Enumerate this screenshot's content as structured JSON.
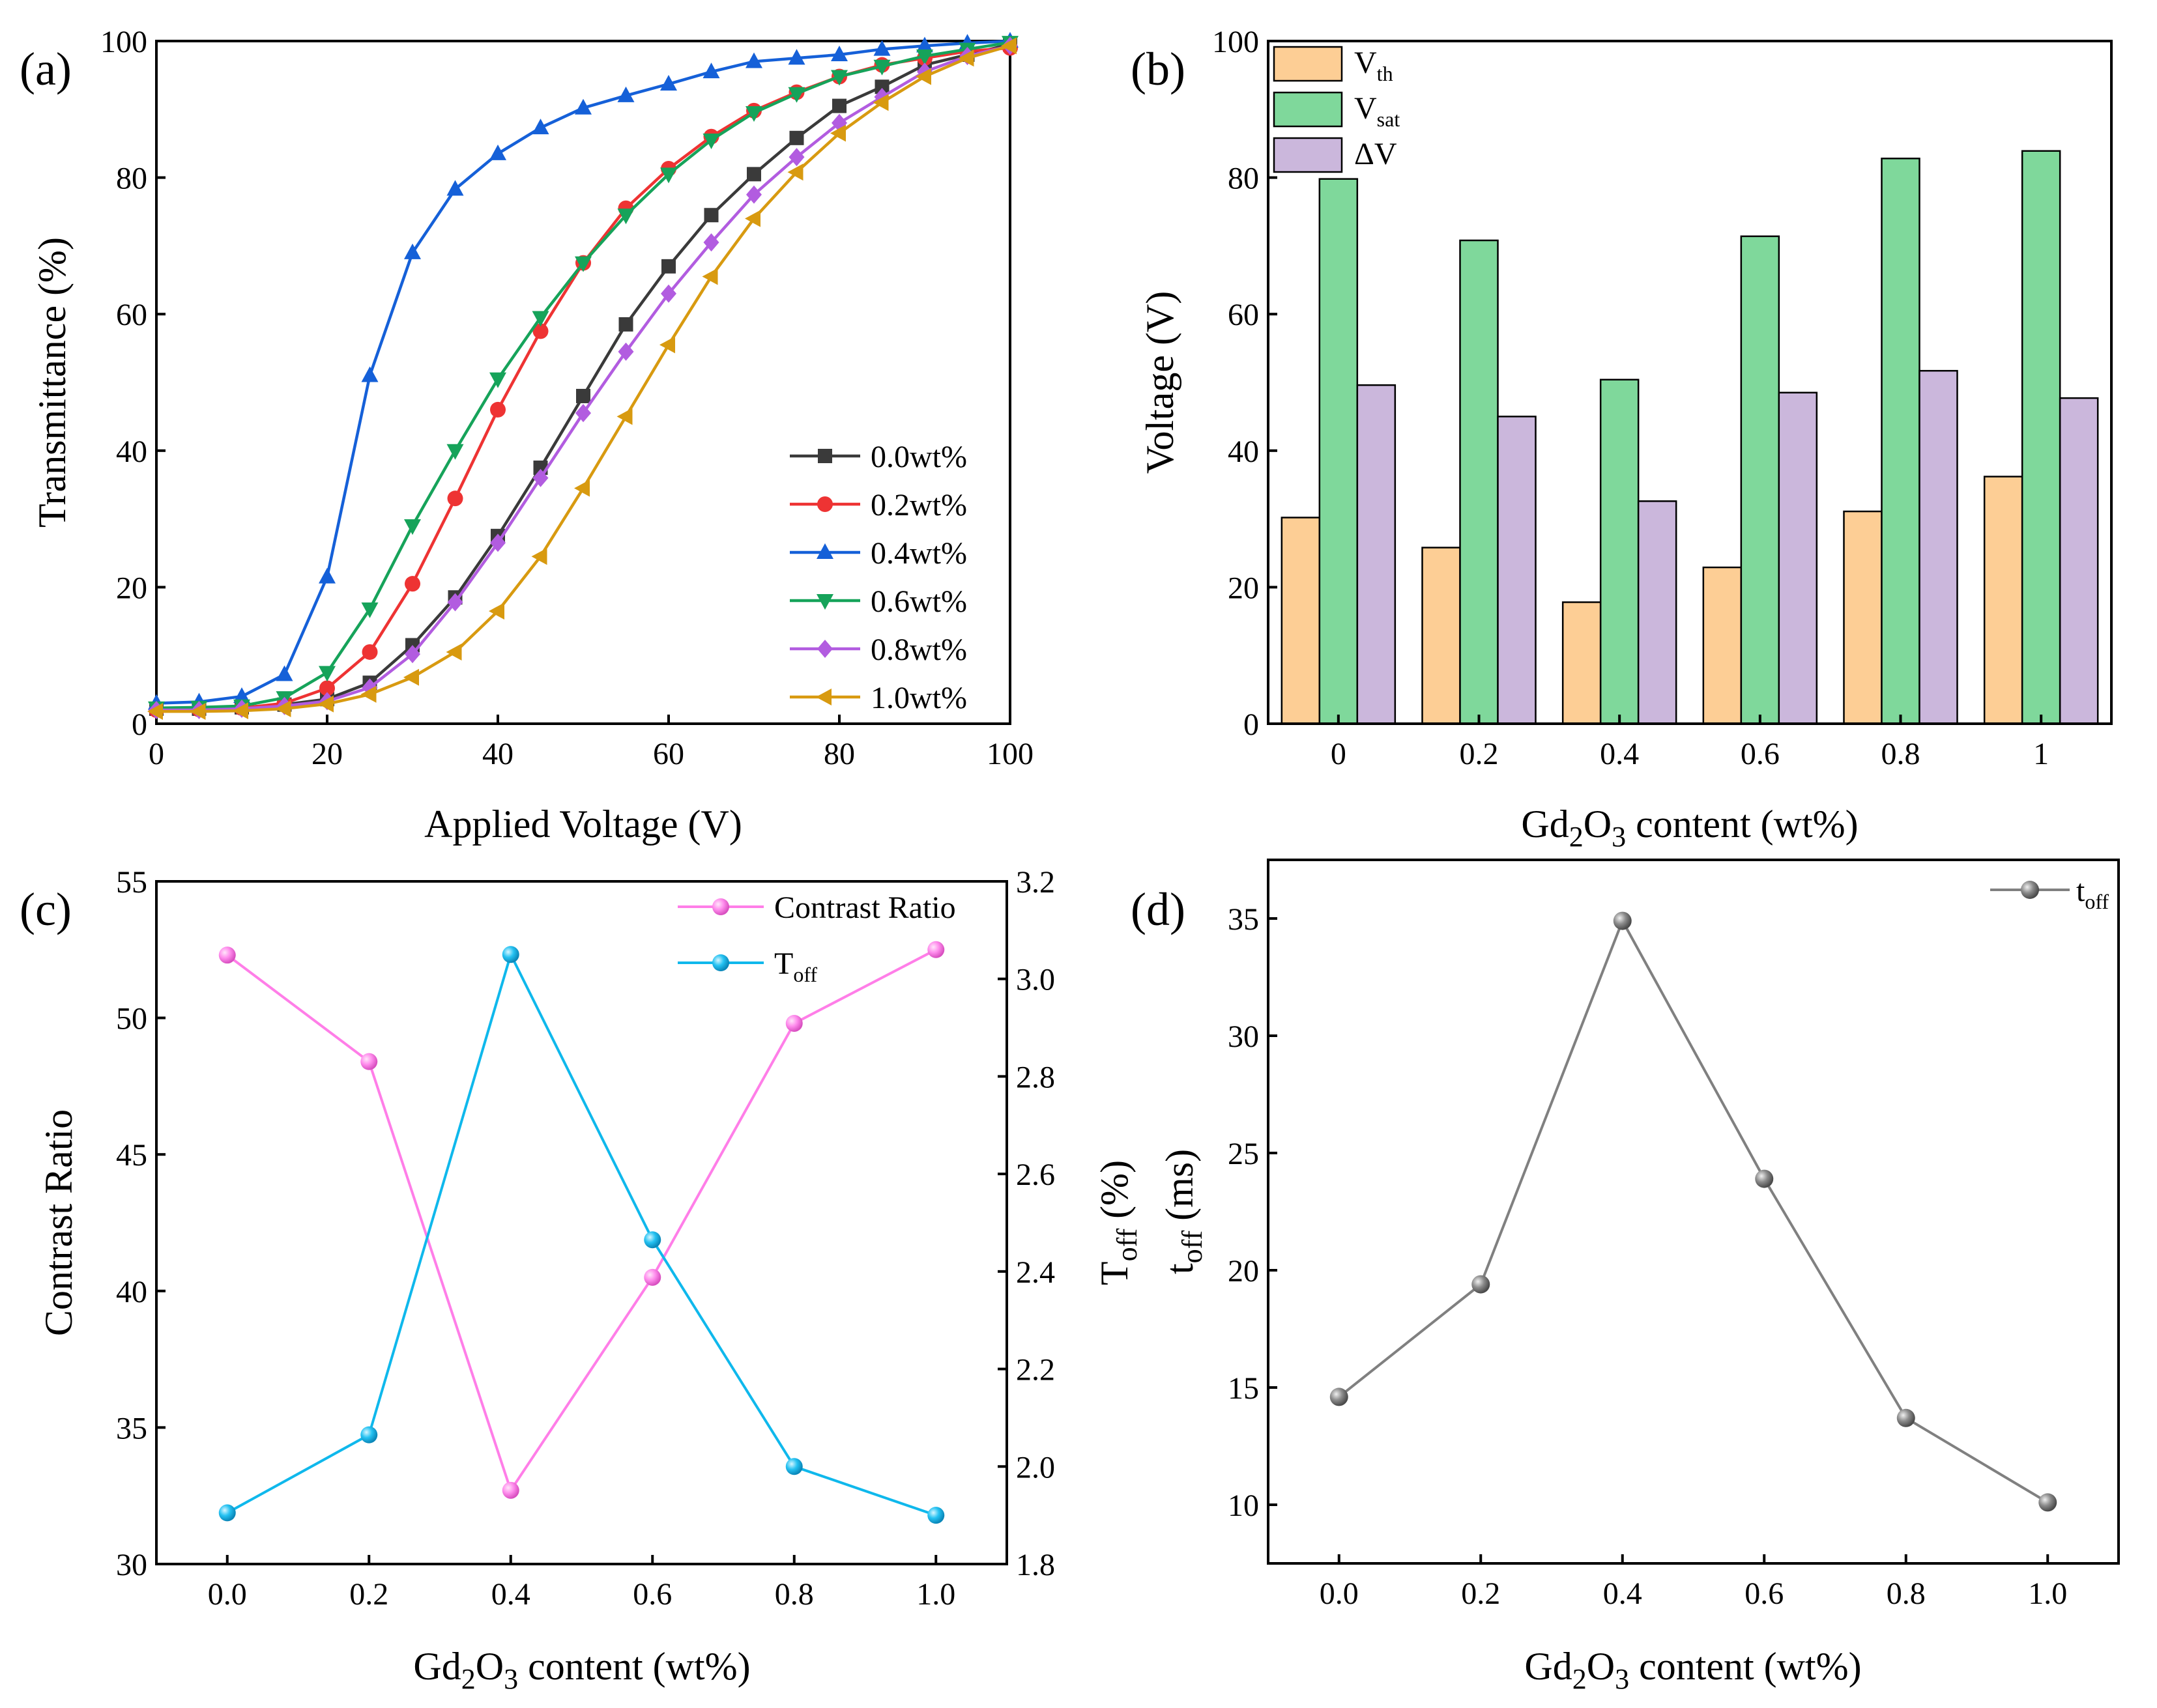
{
  "chart_data": [
    {
      "id": "a",
      "type": "line",
      "panel_label": "(a)",
      "xlabel": "Applied Voltage (V)",
      "ylabel": "Transmittance (%)",
      "xlim": [
        0,
        100
      ],
      "ylim": [
        0,
        100
      ],
      "xticks": [
        "0",
        "20",
        "40",
        "60",
        "80",
        "100"
      ],
      "yticks": [
        "0",
        "20",
        "40",
        "60",
        "80",
        "100"
      ],
      "legend_position": "bottom-right",
      "x": [
        0,
        5,
        10,
        15,
        20,
        25,
        30,
        35,
        40,
        45,
        50,
        55,
        60,
        65,
        70,
        75,
        80,
        85,
        90,
        95,
        100
      ],
      "series": [
        {
          "name": "0.0wt%",
          "color": "#3a3a3a",
          "marker": "square",
          "values": [
            2.2,
            2.2,
            2.4,
            2.8,
            3.6,
            6.0,
            11.5,
            18.5,
            27.5,
            37.5,
            48.0,
            58.5,
            67.0,
            74.5,
            80.5,
            85.8,
            90.5,
            93.3,
            96.5,
            98.0,
            99.5
          ]
        },
        {
          "name": "0.2wt%",
          "color": "#ee3333",
          "marker": "circle",
          "values": [
            2.0,
            2.1,
            2.3,
            3.0,
            5.2,
            10.5,
            20.5,
            33.0,
            46.0,
            57.5,
            67.5,
            75.5,
            81.3,
            86.0,
            89.8,
            92.5,
            94.8,
            96.5,
            97.5,
            98.5,
            99.0
          ]
        },
        {
          "name": "0.4wt%",
          "color": "#1560d8",
          "marker": "triangle-up",
          "values": [
            3.0,
            3.2,
            4.0,
            7.2,
            21.5,
            51.0,
            69.0,
            78.3,
            83.5,
            87.3,
            90.2,
            92.0,
            93.7,
            95.5,
            97.0,
            97.5,
            98.0,
            98.8,
            99.3,
            99.7,
            100.0
          ]
        },
        {
          "name": "0.6wt%",
          "color": "#16a35a",
          "marker": "triangle-down",
          "values": [
            2.3,
            2.4,
            2.6,
            3.8,
            7.5,
            16.8,
            29.0,
            40.0,
            50.5,
            59.5,
            67.5,
            74.5,
            80.5,
            85.5,
            89.5,
            92.3,
            94.8,
            96.3,
            97.8,
            98.8,
            99.8
          ]
        },
        {
          "name": "0.8wt%",
          "color": "#b25ce0",
          "marker": "diamond",
          "values": [
            2.0,
            2.0,
            2.2,
            2.6,
            3.3,
            5.3,
            10.2,
            17.8,
            26.5,
            36.0,
            45.5,
            54.5,
            63.0,
            70.5,
            77.5,
            83.0,
            88.0,
            91.8,
            95.5,
            97.8,
            99.3
          ]
        },
        {
          "name": "1.0wt%",
          "color": "#d89a10",
          "marker": "triangle-left",
          "values": [
            1.8,
            1.8,
            1.9,
            2.2,
            2.9,
            4.3,
            6.8,
            10.5,
            16.5,
            24.5,
            34.5,
            45.0,
            55.5,
            65.5,
            74.0,
            80.8,
            86.5,
            91.0,
            94.8,
            97.5,
            99.3
          ]
        }
      ]
    },
    {
      "id": "b",
      "type": "bar",
      "panel_label": "(b)",
      "xlabel_main": "Gd",
      "xlabel_sub": "2",
      "xlabel_mid": "O",
      "xlabel_sub2": "3",
      "xlabel_rest": " content (wt%)",
      "ylabel": "Voltage (V)",
      "ylim": [
        0,
        100
      ],
      "yticks": [
        "0",
        "20",
        "40",
        "60",
        "80",
        "100"
      ],
      "categories": [
        "0",
        "0.2",
        "0.4",
        "0.6",
        "0.8",
        "1"
      ],
      "legend_position": "top-left",
      "series": [
        {
          "name_main": "V",
          "name_sub": "th",
          "color": "#fdce95",
          "values": [
            30.2,
            25.8,
            17.8,
            22.9,
            31.1,
            36.2
          ]
        },
        {
          "name_main": "V",
          "name_sub": "sat",
          "color": "#7fd89b",
          "values": [
            79.8,
            70.8,
            50.4,
            71.4,
            82.8,
            83.9
          ]
        },
        {
          "name_main": "ΔV",
          "name_sub": "",
          "color": "#cbb7dc",
          "values": [
            49.6,
            45.0,
            32.6,
            48.5,
            51.7,
            47.7
          ]
        }
      ]
    },
    {
      "id": "c",
      "type": "line",
      "panel_label": "(c)",
      "xlabel_main": "Gd",
      "xlabel_sub": "2",
      "xlabel_mid": "O",
      "xlabel_sub2": "3",
      "xlabel_rest": " content (wt%)",
      "ylabel_left": "Contrast Ratio",
      "ylabel_right_main": "T",
      "ylabel_right_sub": "off",
      "ylabel_right_rest": " (%)",
      "xlim": [
        -0.1,
        1.1
      ],
      "ylim_left": [
        30,
        55
      ],
      "ylim_right": [
        1.8,
        3.2
      ],
      "xticks": [
        "0.0",
        "0.2",
        "0.4",
        "0.6",
        "0.8",
        "1.0"
      ],
      "yticks_left": [
        "30",
        "35",
        "40",
        "45",
        "50",
        "55"
      ],
      "yticks_right": [
        "1.8",
        "2.0",
        "2.2",
        "2.4",
        "2.6",
        "2.8",
        "3.0",
        "3.2"
      ],
      "x": [
        0.0,
        0.2,
        0.4,
        0.6,
        0.8,
        1.0
      ],
      "legend_position": "top-right",
      "series": [
        {
          "name_main": "Contrast Ratio",
          "name_sub": "",
          "axis": "left",
          "color": "#ff7ee8",
          "values": [
            52.3,
            48.4,
            32.7,
            40.5,
            49.8,
            52.5
          ]
        },
        {
          "name_main": "T",
          "name_sub": "off",
          "axis": "right",
          "color": "#0fb8ec",
          "values": [
            1.905,
            2.065,
            3.05,
            2.465,
            2.0,
            1.9
          ]
        }
      ]
    },
    {
      "id": "d",
      "type": "line",
      "panel_label": "(d)",
      "xlabel_main": "Gd",
      "xlabel_sub": "2",
      "xlabel_mid": "O",
      "xlabel_sub2": "3",
      "xlabel_rest": " content (wt%)",
      "ylabel_main": "t",
      "ylabel_sub": "off",
      "ylabel_rest": " (ms)",
      "xlim": [
        -0.1,
        1.1
      ],
      "ylim": [
        7.5,
        37.5
      ],
      "xticks": [
        "0.0",
        "0.2",
        "0.4",
        "0.6",
        "0.8",
        "1.0"
      ],
      "yticks": [
        "10",
        "15",
        "20",
        "25",
        "30",
        "35"
      ],
      "x": [
        0.0,
        0.2,
        0.4,
        0.6,
        0.8,
        1.0
      ],
      "legend_position": "top-right",
      "series": [
        {
          "name_main": "t",
          "name_sub": "off",
          "color": "#808080",
          "values": [
            14.6,
            19.4,
            34.9,
            23.9,
            13.7,
            10.1
          ]
        }
      ]
    }
  ]
}
